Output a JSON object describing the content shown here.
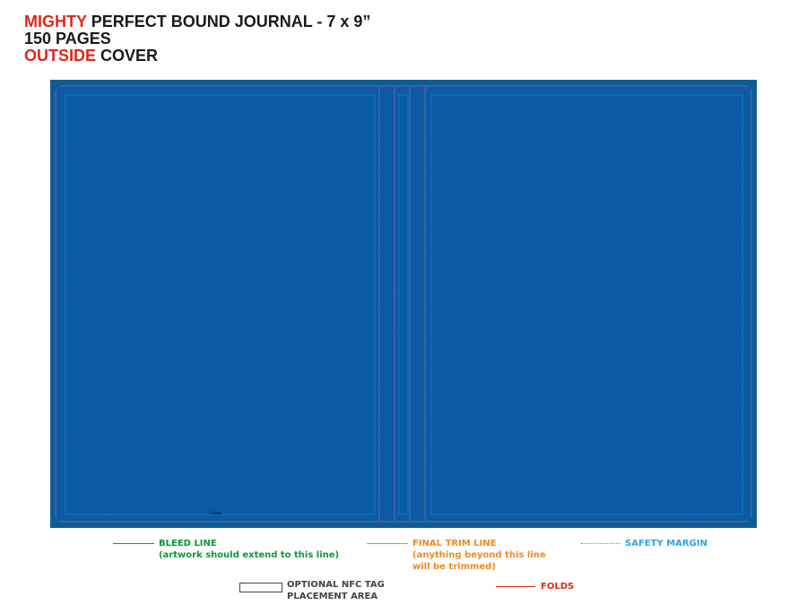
{
  "header": {
    "line1_highlight": "MIGHTY",
    "line1_rest": "PERFECT BOUND JOURNAL - 7 x 9”",
    "line2": "150 PAGES",
    "line3_highlight": "OUTSIDE",
    "line3_rest": "COVER"
  },
  "cover": {
    "tiny_label": "Cover",
    "colors": {
      "bleed": "#0f5c94",
      "panel": "#0b5aa6",
      "trim": "#8a6a9a",
      "safe": "#2aa7e0",
      "fold": "#c0392b"
    }
  },
  "legend": {
    "bleed": {
      "title": "BLEED LINE",
      "note": "(artwork should extend to this line)",
      "color": "#0a9a3a"
    },
    "trim": {
      "title": "FINAL TRIM LINE",
      "note_line1": "(anything beyond this line",
      "note_line2": "will be trimmed)",
      "color": "#f08a24"
    },
    "safety": {
      "title": "SAFETY MARGIN",
      "color": "#2aa7e0"
    },
    "nfc": {
      "title_line1": "OPTIONAL NFC TAG",
      "title_line2": "PLACEMENT AREA",
      "color": "#444444"
    },
    "folds": {
      "title": "FOLDS",
      "color": "#e1251b"
    }
  }
}
